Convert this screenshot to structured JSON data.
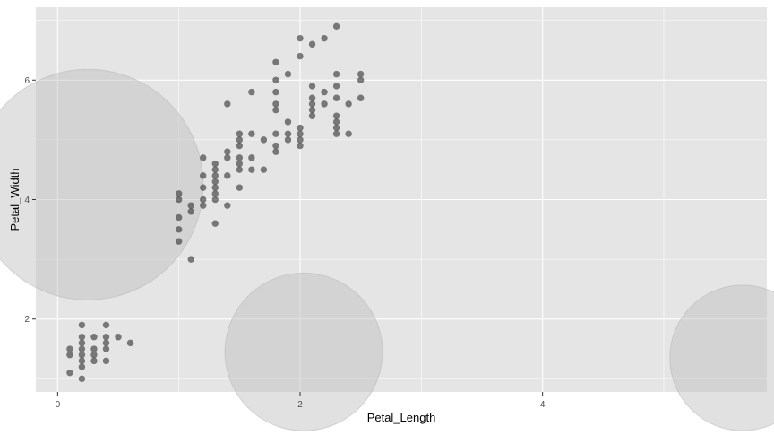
{
  "chart_data": {
    "type": "scatter",
    "title": "",
    "xlabel": "Petal_Length",
    "ylabel": "Petal_Width",
    "xlim": [
      -0.18,
      5.85
    ],
    "ylim": [
      0.78,
      7.22
    ],
    "x_ticks": [
      0,
      2,
      4
    ],
    "y_ticks": [
      2,
      4,
      6
    ],
    "x_tick_labels": [
      "0",
      "2",
      "4"
    ],
    "y_tick_labels": [
      "2",
      "4",
      "6"
    ],
    "grid": true,
    "legend": "none",
    "colors": {
      "panel": "#e5e5e5",
      "grid_major": "#ffffff",
      "points": "#333333",
      "overlay": "#bdbdbd",
      "text": "#4d4d4d",
      "axis_title": "#000000"
    },
    "overlay_circles": [
      {
        "x": 0.25,
        "y": 4.25,
        "r": 0.95
      },
      {
        "x": 2.03,
        "y": 1.45,
        "r": 0.65
      },
      {
        "x": 5.65,
        "y": 1.35,
        "r": 0.6
      }
    ],
    "points": [
      [
        0.1,
        1.1
      ],
      [
        0.1,
        1.4
      ],
      [
        0.1,
        1.5
      ],
      [
        0.2,
        1.0
      ],
      [
        0.2,
        1.2
      ],
      [
        0.2,
        1.3
      ],
      [
        0.2,
        1.4
      ],
      [
        0.2,
        1.5
      ],
      [
        0.2,
        1.6
      ],
      [
        0.2,
        1.7
      ],
      [
        0.2,
        1.9
      ],
      [
        0.3,
        1.3
      ],
      [
        0.3,
        1.4
      ],
      [
        0.3,
        1.5
      ],
      [
        0.3,
        1.7
      ],
      [
        0.4,
        1.3
      ],
      [
        0.4,
        1.5
      ],
      [
        0.4,
        1.6
      ],
      [
        0.4,
        1.7
      ],
      [
        0.4,
        1.9
      ],
      [
        0.5,
        1.7
      ],
      [
        0.6,
        1.6
      ],
      [
        1.0,
        3.3
      ],
      [
        1.0,
        3.5
      ],
      [
        1.0,
        3.7
      ],
      [
        1.0,
        4.0
      ],
      [
        1.0,
        4.1
      ],
      [
        1.1,
        3.0
      ],
      [
        1.1,
        3.8
      ],
      [
        1.1,
        3.9
      ],
      [
        1.2,
        3.9
      ],
      [
        1.2,
        4.0
      ],
      [
        1.2,
        4.2
      ],
      [
        1.2,
        4.4
      ],
      [
        1.2,
        4.7
      ],
      [
        1.3,
        3.6
      ],
      [
        1.3,
        4.0
      ],
      [
        1.3,
        4.1
      ],
      [
        1.3,
        4.2
      ],
      [
        1.3,
        4.3
      ],
      [
        1.3,
        4.4
      ],
      [
        1.3,
        4.5
      ],
      [
        1.3,
        4.6
      ],
      [
        1.4,
        3.9
      ],
      [
        1.4,
        4.4
      ],
      [
        1.4,
        4.7
      ],
      [
        1.4,
        4.8
      ],
      [
        1.4,
        5.6
      ],
      [
        1.5,
        4.2
      ],
      [
        1.5,
        4.5
      ],
      [
        1.5,
        4.6
      ],
      [
        1.5,
        4.7
      ],
      [
        1.5,
        4.9
      ],
      [
        1.5,
        5.0
      ],
      [
        1.5,
        5.1
      ],
      [
        1.6,
        4.5
      ],
      [
        1.6,
        4.7
      ],
      [
        1.6,
        5.1
      ],
      [
        1.6,
        5.8
      ],
      [
        1.7,
        4.5
      ],
      [
        1.7,
        5.0
      ],
      [
        1.8,
        4.8
      ],
      [
        1.8,
        4.9
      ],
      [
        1.8,
        5.1
      ],
      [
        1.8,
        5.5
      ],
      [
        1.8,
        5.6
      ],
      [
        1.8,
        5.8
      ],
      [
        1.8,
        6.0
      ],
      [
        1.8,
        6.3
      ],
      [
        1.9,
        5.0
      ],
      [
        1.9,
        5.1
      ],
      [
        1.9,
        5.3
      ],
      [
        1.9,
        6.1
      ],
      [
        2.0,
        4.9
      ],
      [
        2.0,
        5.0
      ],
      [
        2.0,
        5.1
      ],
      [
        2.0,
        5.2
      ],
      [
        2.0,
        6.4
      ],
      [
        2.0,
        6.7
      ],
      [
        2.1,
        5.4
      ],
      [
        2.1,
        5.5
      ],
      [
        2.1,
        5.6
      ],
      [
        2.1,
        5.7
      ],
      [
        2.1,
        5.9
      ],
      [
        2.1,
        6.6
      ],
      [
        2.2,
        5.6
      ],
      [
        2.2,
        5.8
      ],
      [
        2.2,
        6.7
      ],
      [
        2.3,
        5.1
      ],
      [
        2.3,
        5.2
      ],
      [
        2.3,
        5.3
      ],
      [
        2.3,
        5.4
      ],
      [
        2.3,
        5.7
      ],
      [
        2.3,
        5.9
      ],
      [
        2.3,
        6.1
      ],
      [
        2.3,
        6.9
      ],
      [
        2.4,
        5.1
      ],
      [
        2.4,
        5.6
      ],
      [
        2.5,
        5.7
      ],
      [
        2.5,
        6.0
      ],
      [
        2.5,
        6.1
      ]
    ]
  }
}
